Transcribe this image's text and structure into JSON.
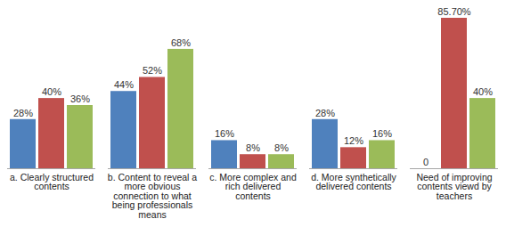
{
  "chart_data": {
    "type": "bar",
    "categories": [
      "a. Clearly structured contents",
      "b. Content to reveal a more obvious connection to what being professionals means",
      "c. More complex and rich delivered contents",
      "d. More synthetically delivered contents",
      "Need of improving contents viewd by teachers"
    ],
    "series": [
      {
        "color": "#4f81bd",
        "values": [
          28,
          44,
          16,
          28,
          0
        ],
        "value_labels": [
          "28%",
          "44%",
          "16%",
          "28%",
          "0"
        ]
      },
      {
        "color": "#c0504d",
        "values": [
          40,
          52,
          8,
          12,
          85.7
        ],
        "value_labels": [
          "40%",
          "52%",
          "8%",
          "12%",
          "85.70%"
        ]
      },
      {
        "color": "#9bbb59",
        "values": [
          36,
          68,
          8,
          16,
          40
        ],
        "value_labels": [
          "36%",
          "68%",
          "8%",
          "16%",
          "40%"
        ]
      }
    ],
    "data_labels": true,
    "tick_labels": false
  }
}
